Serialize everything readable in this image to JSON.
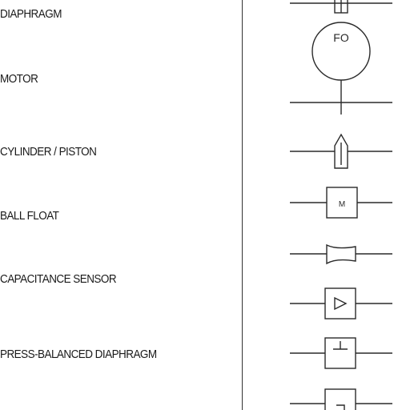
{
  "labels": {
    "diaphragm": "DIAPHRAGM",
    "motor": "MOTOR",
    "cylinder_piston": "CYLINDER / PISTON",
    "ball_float": "BALL FLOAT",
    "capacitance_sensor": "CAPACITANCE SENSOR",
    "press_balanced_diaphragm": "PRESS-BALANCED DIAPHRAGM"
  },
  "symbols": {
    "fo_text": "FO",
    "m_box_text": "M"
  },
  "colors": {
    "line": "#2a2a2a",
    "background": "#ffffff"
  }
}
